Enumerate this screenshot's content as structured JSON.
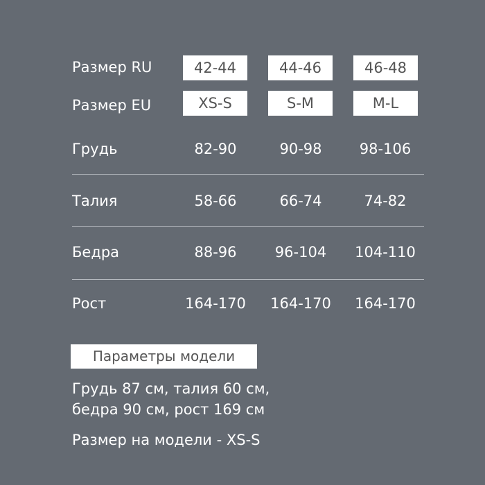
{
  "size_ru": {
    "label": "Размер RU",
    "values": [
      "42-44",
      "44-46",
      "46-48"
    ]
  },
  "size_eu": {
    "label": "Размер EU",
    "values": [
      "XS-S",
      "S-M",
      "M-L"
    ]
  },
  "rows": [
    {
      "label": "Грудь",
      "values": [
        "82-90",
        "90-98",
        "98-106"
      ]
    },
    {
      "label": "Талия",
      "values": [
        "58-66",
        "66-74",
        "74-82"
      ]
    },
    {
      "label": "Бедра",
      "values": [
        "88-96",
        "96-104",
        "104-110"
      ]
    },
    {
      "label": "Рост",
      "values": [
        "164-170",
        "164-170",
        "164-170"
      ]
    }
  ],
  "model": {
    "heading": "Параметры модели",
    "line1": "Грудь 87 см,  талия 60 см,",
    "line2": "бедра 90 см, рост 169 см",
    "size_line": "Размер на модели - XS-S"
  },
  "colors": {
    "background": "#646a72",
    "box": "#ffffff",
    "box_text": "#555555"
  }
}
